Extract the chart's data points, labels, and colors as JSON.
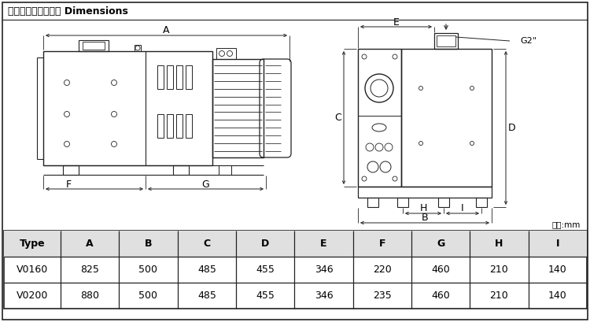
{
  "title": "外型尺寸及安装尺寸 Dimensions",
  "unit_label": "单位:mm",
  "table_headers": [
    "Type",
    "A",
    "B",
    "C",
    "D",
    "E",
    "F",
    "G",
    "H",
    "I"
  ],
  "table_rows": [
    [
      "V0160",
      "825",
      "500",
      "485",
      "455",
      "346",
      "220",
      "460",
      "210",
      "140"
    ],
    [
      "V0200",
      "880",
      "500",
      "485",
      "455",
      "346",
      "235",
      "460",
      "210",
      "140"
    ]
  ],
  "line_color": "#222222",
  "g2_label": "G2\""
}
